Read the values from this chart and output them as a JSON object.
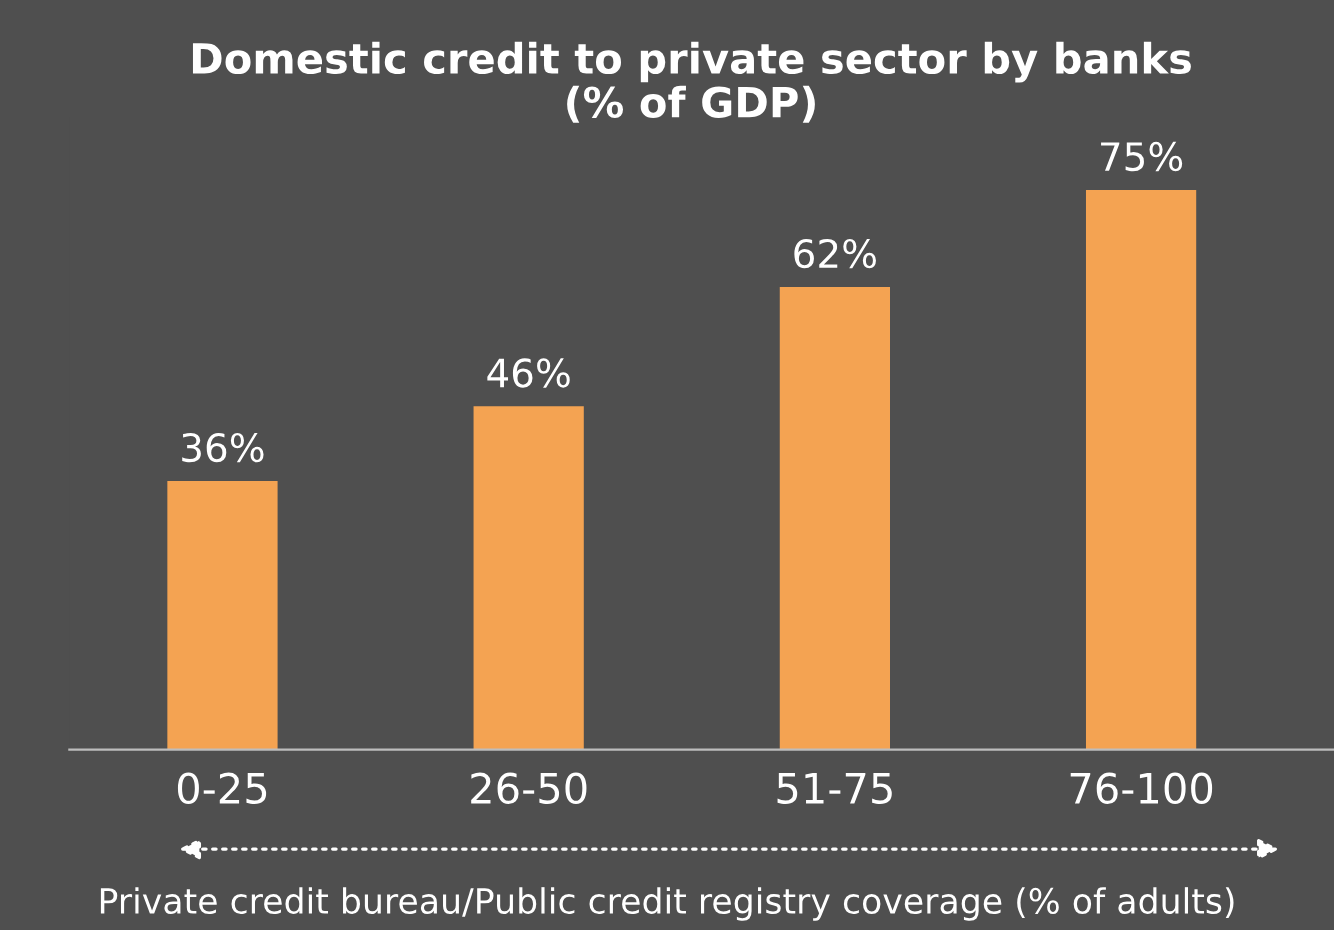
{
  "chart_data": {
    "type": "bar",
    "title": "Domestic credit to private sector by banks\n(% of GDP)",
    "xlabel": "Private credit bureau/Public credit registry coverage (% of adults)",
    "categories": [
      "0-25",
      "26-50",
      "51-75",
      "76-100"
    ],
    "values": [
      36,
      46,
      62,
      75
    ],
    "value_labels": [
      "36%",
      "46%",
      "62%",
      "75%"
    ],
    "color": "#f4a352",
    "grid": false,
    "legend": false
  }
}
